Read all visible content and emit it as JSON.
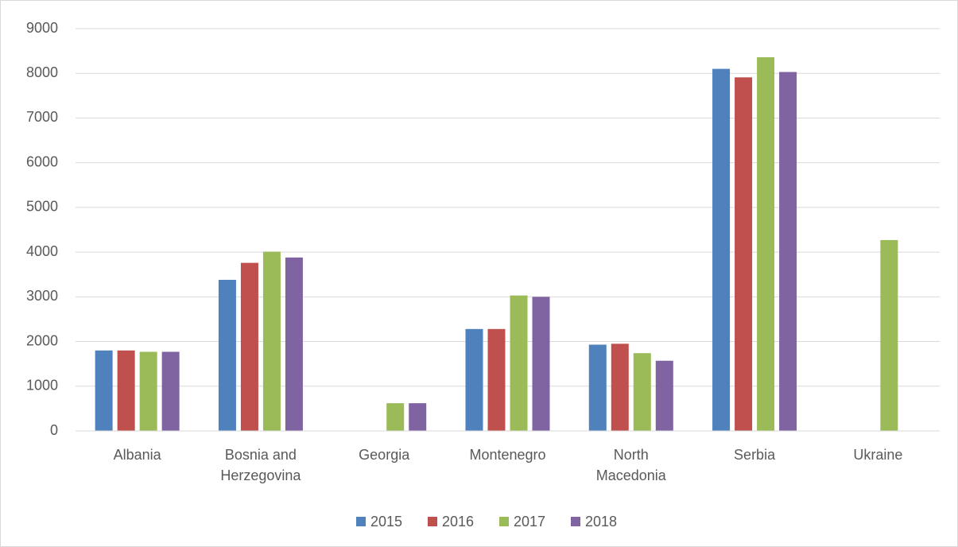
{
  "chart_data": {
    "type": "bar",
    "categories": [
      "Albania",
      "Bosnia and Herzegovina",
      "Georgia",
      "Montenegro",
      "North Macedonia",
      "Serbia",
      "Ukraine"
    ],
    "series": [
      {
        "name": "2015",
        "color": "#4f81bd",
        "values": [
          1800,
          3380,
          null,
          2280,
          1930,
          8100,
          null
        ]
      },
      {
        "name": "2016",
        "color": "#c0504d",
        "values": [
          1800,
          3760,
          null,
          2280,
          1950,
          7910,
          null
        ]
      },
      {
        "name": "2017",
        "color": "#9bbb59",
        "values": [
          1770,
          4010,
          620,
          3030,
          1740,
          8360,
          4270
        ]
      },
      {
        "name": "2018",
        "color": "#8064a2",
        "values": [
          1770,
          3880,
          620,
          3000,
          1570,
          8030,
          null
        ]
      }
    ],
    "ylim": [
      0,
      9000
    ],
    "yticks": [
      0,
      1000,
      2000,
      3000,
      4000,
      5000,
      6000,
      7000,
      8000,
      9000
    ],
    "grid": true,
    "legend": "bottom"
  }
}
